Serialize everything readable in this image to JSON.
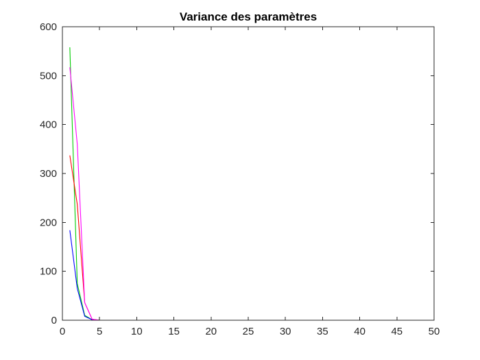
{
  "chart_data": {
    "type": "line",
    "title": "Variance des paramètres",
    "xlabel": "",
    "ylabel": "",
    "xlim": [
      0,
      50
    ],
    "ylim": [
      0,
      600
    ],
    "xticks": [
      0,
      5,
      10,
      15,
      20,
      25,
      30,
      35,
      40,
      45,
      50
    ],
    "yticks": [
      0,
      100,
      200,
      300,
      400,
      500,
      600
    ],
    "grid": false,
    "legend": "none",
    "series": [
      {
        "color": "#00cc00",
        "x": [
          1,
          2,
          3,
          4,
          5,
          6,
          7,
          8,
          9,
          10,
          11,
          12,
          13,
          14,
          15,
          16,
          17,
          18,
          19,
          20,
          21,
          22,
          23,
          24,
          25,
          26,
          27,
          28,
          29,
          30,
          31,
          32,
          33,
          34,
          35,
          36,
          37,
          38,
          39,
          40,
          41,
          42,
          43,
          44,
          45,
          46,
          47,
          48,
          49,
          50
        ],
        "y": [
          558,
          75,
          10,
          1,
          0,
          0,
          0,
          0,
          0,
          0,
          0,
          0,
          0,
          0,
          0,
          0,
          0,
          0,
          0,
          0,
          0,
          0,
          0,
          0,
          0,
          0,
          0,
          0,
          0,
          0,
          0,
          0,
          0,
          0,
          0,
          0,
          0,
          0,
          0,
          0,
          0,
          0,
          0,
          0,
          0,
          0,
          0,
          0,
          0,
          0
        ]
      },
      {
        "color": "#0000ff",
        "x": [
          1,
          2,
          3,
          4,
          5,
          6,
          7,
          8,
          9,
          10,
          11,
          12,
          13,
          14,
          15,
          16,
          17,
          18,
          19,
          20,
          21,
          22,
          23,
          24,
          25,
          26,
          27,
          28,
          29,
          30,
          31,
          32,
          33,
          34,
          35,
          36,
          37,
          38,
          39,
          40,
          41,
          42,
          43,
          44,
          45,
          46,
          47,
          48,
          49,
          50
        ],
        "y": [
          184,
          65,
          8,
          1,
          0,
          0,
          0,
          0,
          0,
          0,
          0,
          0,
          0,
          0,
          0,
          0,
          0,
          0,
          0,
          0,
          0,
          0,
          0,
          0,
          0,
          0,
          0,
          0,
          0,
          0,
          0,
          0,
          0,
          0,
          0,
          0,
          0,
          0,
          0,
          0,
          0,
          0,
          0,
          0,
          0,
          0,
          0,
          0,
          0,
          0
        ]
      },
      {
        "color": "#ff0000",
        "x": [
          1,
          2,
          3,
          4,
          5,
          6,
          7,
          8,
          9,
          10,
          11,
          12,
          13,
          14,
          15,
          16,
          17,
          18,
          19,
          20,
          21,
          22,
          23,
          24,
          25,
          26,
          27,
          28,
          29,
          30,
          31,
          32,
          33,
          34,
          35,
          36,
          37,
          38,
          39,
          40,
          41,
          42,
          43,
          44,
          45,
          46,
          47,
          48,
          49,
          50
        ],
        "y": [
          337,
          237,
          36,
          2,
          0,
          0,
          0,
          0,
          0,
          0,
          0,
          0,
          0,
          0,
          0,
          0,
          0,
          0,
          0,
          0,
          0,
          0,
          0,
          0,
          0,
          0,
          0,
          0,
          0,
          0,
          0,
          0,
          0,
          0,
          0,
          0,
          0,
          0,
          0,
          0,
          0,
          0,
          0,
          0,
          0,
          0,
          0,
          0,
          0,
          0
        ]
      },
      {
        "color": "#ff00ff",
        "x": [
          1,
          2,
          3,
          4,
          5,
          6,
          7,
          8,
          9,
          10,
          11,
          12,
          13,
          14,
          15,
          16,
          17,
          18,
          19,
          20,
          21,
          22,
          23,
          24,
          25,
          26,
          27,
          28,
          29,
          30,
          31,
          32,
          33,
          34,
          35,
          36,
          37,
          38,
          39,
          40,
          41,
          42,
          43,
          44,
          45,
          46,
          47,
          48,
          49,
          50
        ],
        "y": [
          517,
          360,
          36,
          2,
          0,
          0,
          0,
          0,
          0,
          0,
          0,
          0,
          0,
          0,
          0,
          0,
          0,
          0,
          0,
          0,
          0,
          0,
          0,
          0,
          0,
          0,
          0,
          0,
          0,
          0,
          0,
          0,
          0,
          0,
          0,
          0,
          0,
          0,
          0,
          0,
          0,
          0,
          0,
          0,
          0,
          0,
          0,
          0,
          0,
          0
        ]
      }
    ]
  }
}
